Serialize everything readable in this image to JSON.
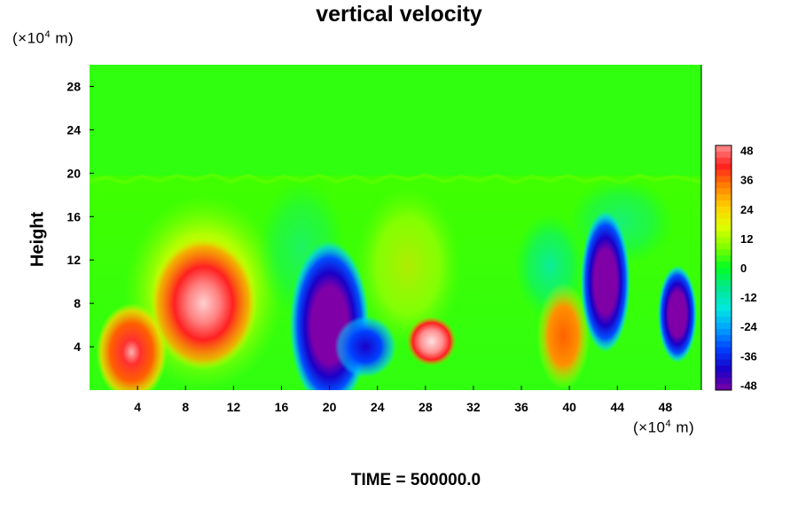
{
  "chart_data": {
    "type": "heatmap",
    "title": "vertical velocity",
    "ylabel": "Height",
    "y_unit_prefix": "(×10",
    "y_unit_exp": "4",
    "y_unit_suffix": " m)",
    "x_unit_prefix": "(×10",
    "x_unit_exp": "4",
    "x_unit_suffix": " m)",
    "footer": "TIME = 500000.0",
    "xlim": [
      0,
      51
    ],
    "ylim": [
      0,
      30
    ],
    "x_ticks": [
      4,
      8,
      12,
      16,
      20,
      24,
      28,
      32,
      36,
      40,
      44,
      48
    ],
    "y_ticks": [
      4,
      8,
      12,
      16,
      20,
      24,
      28
    ],
    "colorbar": {
      "min": -50,
      "max": 50,
      "ticks": [
        48,
        36,
        24,
        12,
        0,
        -12,
        -24,
        -36,
        -48
      ],
      "colors": [
        "#7a00a6",
        "#1a00c8",
        "#0040ff",
        "#00a0ff",
        "#00e8e0",
        "#00e890",
        "#00ff20",
        "#80ff00",
        "#e0ff00",
        "#ffd000",
        "#ff8000",
        "#ff2020",
        "#ff9090"
      ]
    },
    "background_value": 0,
    "features": [
      {
        "kind": "updraft",
        "x": 3.5,
        "y": 3.5,
        "value": 45
      },
      {
        "kind": "updraft",
        "x": 9.5,
        "y": 8,
        "value": 48
      },
      {
        "kind": "updraft",
        "x": 28.5,
        "y": 4.5,
        "value": 50
      },
      {
        "kind": "updraft",
        "x": 39.5,
        "y": 5,
        "value": 30
      },
      {
        "kind": "downdraft",
        "x": 20,
        "y": 6,
        "value": -50
      },
      {
        "kind": "downdraft",
        "x": 23,
        "y": 4,
        "value": -40
      },
      {
        "kind": "downdraft",
        "x": 43,
        "y": 10,
        "value": -48
      },
      {
        "kind": "downdraft",
        "x": 49,
        "y": 7,
        "value": -45
      }
    ]
  }
}
